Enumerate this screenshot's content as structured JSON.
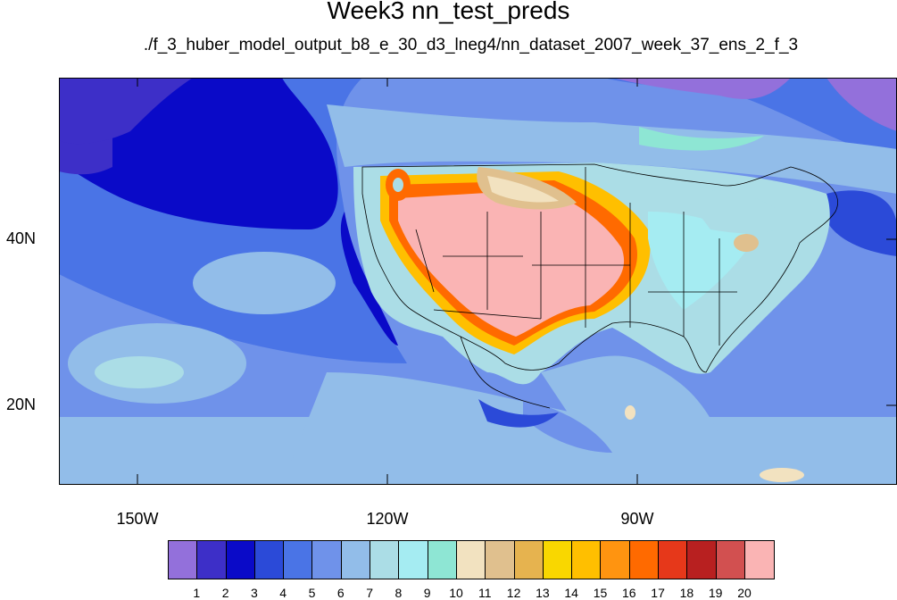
{
  "title": "Week3 nn_test_preds",
  "subtitle": "./f_3_huber_model_output_b8_e_30_d3_lneg4/nn_dataset_2007_week_37_ens_2_f_3",
  "axes": {
    "lat_labels": [
      "40N",
      "20N"
    ],
    "lon_labels": [
      "150W",
      "120W",
      "90W"
    ]
  },
  "colorbar": {
    "labels": [
      "1",
      "2",
      "3",
      "4",
      "5",
      "6",
      "7",
      "8",
      "9",
      "10",
      "11",
      "12",
      "13",
      "14",
      "15",
      "16",
      "17",
      "18",
      "19",
      "20"
    ],
    "colors": [
      "#9370db",
      "#3d2fc8",
      "#0a0ac8",
      "#2b4ad8",
      "#4a74e6",
      "#6f92ea",
      "#92bde9",
      "#abdde6",
      "#a5ecf2",
      "#8ee6d4",
      "#f2e2c0",
      "#e0c08e",
      "#e6b34f",
      "#f9d700",
      "#ffbf00",
      "#ff9410",
      "#ff6a00",
      "#e6381a",
      "#b82020",
      "#d25050",
      "#fab4b4"
    ]
  },
  "colors": {
    "ocean_base": "#6f92ea",
    "pacific_dark": "#2b4ad8",
    "land_hot": "#fab4b4"
  }
}
